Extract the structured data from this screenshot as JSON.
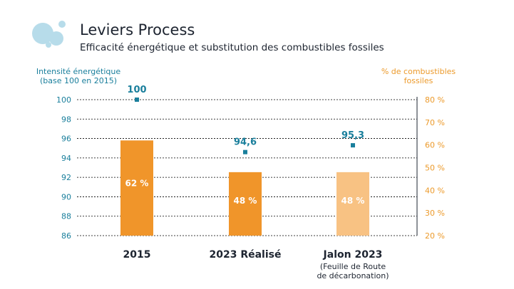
{
  "header": {
    "title": "Leviers Process",
    "subtitle": "Efficacité énergétique et substitution des combustibles fossiles"
  },
  "colors": {
    "teal": "#1a7f9c",
    "orange": "#f0952a",
    "orange_light": "#f8c283",
    "orange_text": "#ec9a2b",
    "logo_light": "#b7dcea"
  },
  "chart_data": {
    "type": "bar",
    "title": "Leviers Process",
    "subtitle": "Efficacité énergétique et substitution des combustibles fossiles",
    "y_left": {
      "label_lines": [
        "Intensité énergétique",
        "(base 100 en 2015)"
      ],
      "min": 86,
      "max": 100,
      "step": 2,
      "ticks": [
        "86",
        "88",
        "90",
        "92",
        "94",
        "96",
        "98",
        "100"
      ]
    },
    "y_right": {
      "label_lines": [
        "% de combustibles",
        "fossiles"
      ],
      "min": 20,
      "max": 80,
      "step": 10,
      "ticks": [
        "20 %",
        "30 %",
        "40 %",
        "50 %",
        "60 %",
        "70 %",
        "80 %"
      ]
    },
    "categories": [
      {
        "label": "2015",
        "sublines": []
      },
      {
        "label": "2023 Réalisé",
        "sublines": []
      },
      {
        "label": "Jalon 2023",
        "sublines": [
          "(Feuille de Route",
          "de décarbonation)"
        ]
      }
    ],
    "series": [
      {
        "name": "% de combustibles fossiles",
        "axis": "right",
        "kind": "bar",
        "values": [
          62,
          48,
          48
        ],
        "labels": [
          "62 %",
          "48 %",
          "48 %"
        ],
        "colors": [
          "#f0952a",
          "#f0952a",
          "#f8c283"
        ]
      },
      {
        "name": "Intensité énergétique",
        "axis": "left",
        "kind": "point",
        "values": [
          100,
          94.6,
          95.3
        ],
        "labels": [
          "100",
          "94,6",
          "95,3"
        ]
      }
    ]
  }
}
